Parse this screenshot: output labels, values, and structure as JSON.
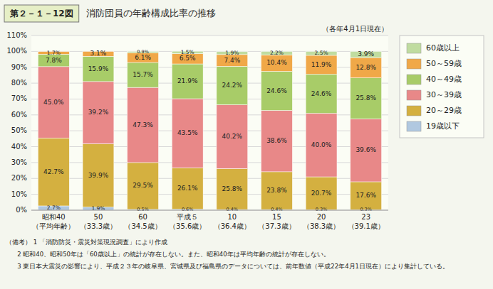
{
  "chart_data": {
    "type": "bar",
    "stacked": true,
    "title": "消防団員の年齢構成比率の推移",
    "subtitle": "（各年4月1日現在）",
    "annotations": [
      "第２－１－12図",
      "（備考） 1 「消防防災・震災対策現況調査」により作成",
      "      2 昭和40、昭和50年は「60歳以上」の統計が存在しない。また、昭和40年は平均年齢の統計が存在しない。",
      "      3 東日本大震災の影響により、平成２３年の岐阜県、宮城県及び福島県のデータについては、前年数値（平成22年4月1日現在）により集計している。"
    ],
    "categories": [
      "昭和40\n（平均年齢）",
      "50\n（33.3歳）",
      "60\n（34.5歳）",
      "平成５\n（35.6歳）",
      "10\n（36.4歳）",
      "15\n（37.3歳）",
      "20\n（38.3歳）",
      "23\n（39.1歳）"
    ],
    "series": [
      {
        "name": "19歳以下",
        "color": "#b0c8e0",
        "values": [
          2.7,
          1.9,
          0.5,
          0.6,
          0.4,
          0.4,
          0.3,
          0.3
        ],
        "value_labels": [
          "2.7%",
          "1.9%",
          "0.5%",
          "0.6%",
          "0.4%",
          "0.4%",
          "0.3%",
          "0.3%"
        ]
      },
      {
        "name": "20～29歳",
        "color": "#d4b040",
        "values": [
          42.7,
          39.9,
          29.5,
          26.1,
          25.8,
          23.8,
          20.7,
          17.6
        ],
        "value_labels": [
          "42.7%",
          "39.9%",
          "29.5%",
          "26.1%",
          "25.8%",
          "23.8%",
          "20.7%",
          "17.6%"
        ]
      },
      {
        "name": "30～39歳",
        "color": "#e88888",
        "values": [
          45.0,
          39.2,
          47.3,
          43.5,
          40.2,
          38.6,
          40.0,
          39.6
        ],
        "value_labels": [
          "45.0%",
          "39.2%",
          "47.3%",
          "43.5%",
          "40.2%",
          "38.6%",
          "40.0%",
          "39.6%"
        ]
      },
      {
        "name": "40～49歳",
        "color": "#a8cc68",
        "values": [
          7.8,
          15.9,
          15.7,
          21.9,
          24.2,
          24.6,
          24.6,
          25.8
        ],
        "value_labels": [
          "7.8%",
          "15.9%",
          "15.7%",
          "21.9%",
          "24.2%",
          "24.6%",
          "24.6%",
          "25.8%"
        ]
      },
      {
        "name": "50～59歳",
        "color": "#f0a848",
        "values": [
          1.7,
          3.1,
          6.1,
          6.5,
          7.4,
          10.4,
          11.9,
          12.8
        ],
        "value_labels": [
          "1.7%",
          "3.1%",
          "6.1%",
          "6.5%",
          "7.4%",
          "10.4%",
          "11.9%",
          "12.8%"
        ]
      },
      {
        "name": "60歳以上",
        "color": "#c0dca0",
        "values": [
          0.0,
          0.0,
          0.9,
          1.5,
          1.9,
          2.2,
          2.5,
          3.9
        ],
        "value_labels": [
          null,
          null,
          "0.9%",
          "1.5%",
          "1.9%",
          "2.2%",
          "2.5%",
          "3.9%"
        ]
      }
    ],
    "ylim": [
      0,
      110
    ],
    "yticks": [
      {
        "value": 0,
        "label": "0%"
      },
      {
        "value": 10,
        "label": "10%"
      },
      {
        "value": 20,
        "label": "20%"
      },
      {
        "value": 30,
        "label": "30%"
      },
      {
        "value": 40,
        "label": "40%"
      },
      {
        "value": 50,
        "label": "50%"
      },
      {
        "value": 60,
        "label": "60%"
      },
      {
        "value": 70,
        "label": "70%"
      },
      {
        "value": 80,
        "label": "80%"
      },
      {
        "value": 90,
        "label": "90%"
      },
      {
        "value": 100,
        "label": "100%"
      },
      {
        "value": 110,
        "label": "110%"
      }
    ],
    "grid": true,
    "legend": "right",
    "data_labels": true
  }
}
